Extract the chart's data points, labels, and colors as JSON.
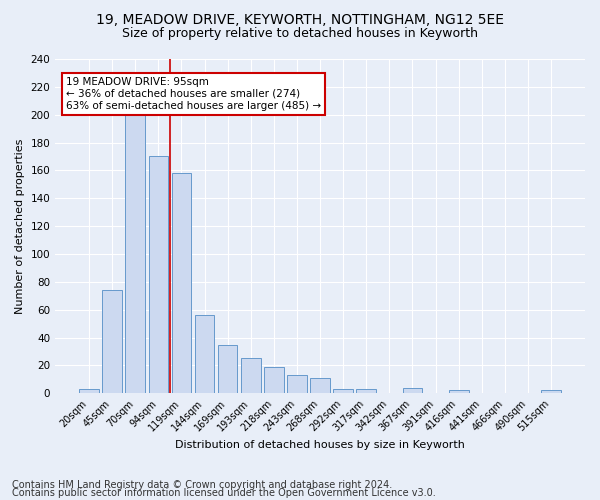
{
  "title1": "19, MEADOW DRIVE, KEYWORTH, NOTTINGHAM, NG12 5EE",
  "title2": "Size of property relative to detached houses in Keyworth",
  "xlabel": "Distribution of detached houses by size in Keyworth",
  "ylabel": "Number of detached properties",
  "footnote1": "Contains HM Land Registry data © Crown copyright and database right 2024.",
  "footnote2": "Contains public sector information licensed under the Open Government Licence v3.0.",
  "bar_labels": [
    "20sqm",
    "45sqm",
    "70sqm",
    "94sqm",
    "119sqm",
    "144sqm",
    "169sqm",
    "193sqm",
    "218sqm",
    "243sqm",
    "268sqm",
    "292sqm",
    "317sqm",
    "342sqm",
    "367sqm",
    "391sqm",
    "416sqm",
    "441sqm",
    "466sqm",
    "490sqm",
    "515sqm"
  ],
  "bar_values": [
    3,
    74,
    200,
    170,
    158,
    56,
    35,
    25,
    19,
    13,
    11,
    3,
    3,
    0,
    4,
    0,
    2,
    0,
    0,
    0,
    2
  ],
  "bar_color": "#ccd9f0",
  "bar_edge_color": "#6699cc",
  "annotation_label": "19 MEADOW DRIVE: 95sqm",
  "annotation_line1": "← 36% of detached houses are smaller (274)",
  "annotation_line2": "63% of semi-detached houses are larger (485) →",
  "vline_color": "#cc0000",
  "annotation_box_color": "#ffffff",
  "annotation_box_edge_color": "#cc0000",
  "ylim": [
    0,
    240
  ],
  "yticks": [
    0,
    20,
    40,
    60,
    80,
    100,
    120,
    140,
    160,
    180,
    200,
    220,
    240
  ],
  "background_color": "#e8eef8",
  "grid_color": "#ffffff",
  "title1_fontsize": 10,
  "title2_fontsize": 9,
  "footnote_fontsize": 7
}
